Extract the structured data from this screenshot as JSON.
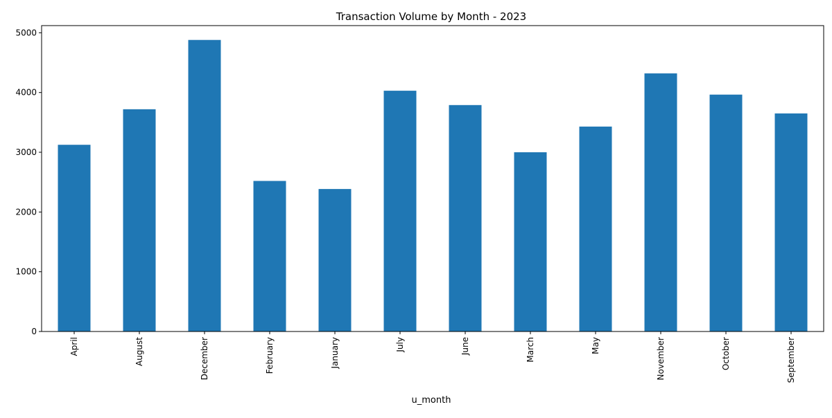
{
  "chart_data": {
    "type": "bar",
    "title": "Transaction Volume by Month - 2023",
    "xlabel": "u_month",
    "ylabel": "",
    "categories": [
      "April",
      "August",
      "December",
      "February",
      "January",
      "July",
      "June",
      "March",
      "May",
      "November",
      "October",
      "September"
    ],
    "values": [
      3125,
      3720,
      4880,
      2520,
      2385,
      4030,
      3790,
      3000,
      3430,
      4320,
      3965,
      3650
    ],
    "ylim": [
      0,
      5120
    ],
    "yticks": [
      0,
      1000,
      2000,
      3000,
      4000,
      5000
    ],
    "grid": false,
    "legend": "none",
    "bar_color": "#1f77b4"
  }
}
